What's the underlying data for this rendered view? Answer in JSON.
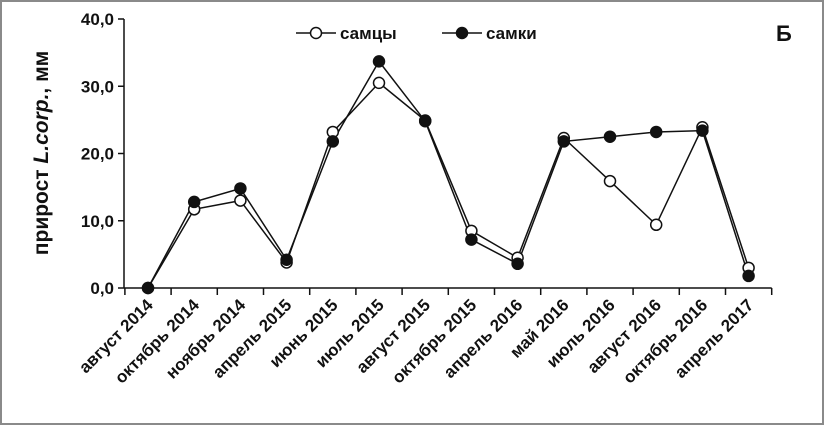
{
  "chart_data": {
    "type": "line",
    "panel_label": "Б",
    "ylabel": {
      "prefix": "прирост ",
      "species": "L.corp.",
      "suffix": ", мм"
    },
    "ylim": [
      0,
      40
    ],
    "yticks": [
      0,
      10,
      20,
      30,
      40
    ],
    "ytick_labels": [
      "0,0",
      "10,0",
      "20,0",
      "30,0",
      "40,0"
    ],
    "categories": [
      "август 2014",
      "октябрь 2014",
      "ноябрь 2014",
      "апрель 2015",
      "июнь 2015",
      "июль 2015",
      "август 2015",
      "октябрь 2015",
      "апрель 2016",
      "май 2016",
      "июль 2016",
      "август 2016",
      "октябрь 2016",
      "апрель 2017"
    ],
    "series": [
      {
        "name": "самцы",
        "marker": "open-circle",
        "values": [
          0,
          11.7,
          13.0,
          3.8,
          23.2,
          30.5,
          24.9,
          8.5,
          4.5,
          22.3,
          15.9,
          9.4,
          23.9,
          3.0
        ]
      },
      {
        "name": "самки",
        "marker": "filled-circle",
        "values": [
          0,
          12.8,
          14.8,
          4.2,
          21.8,
          33.7,
          24.8,
          7.2,
          3.6,
          21.8,
          22.5,
          23.2,
          23.4,
          1.8
        ]
      }
    ],
    "legend_position": "top-center",
    "grid": false
  }
}
